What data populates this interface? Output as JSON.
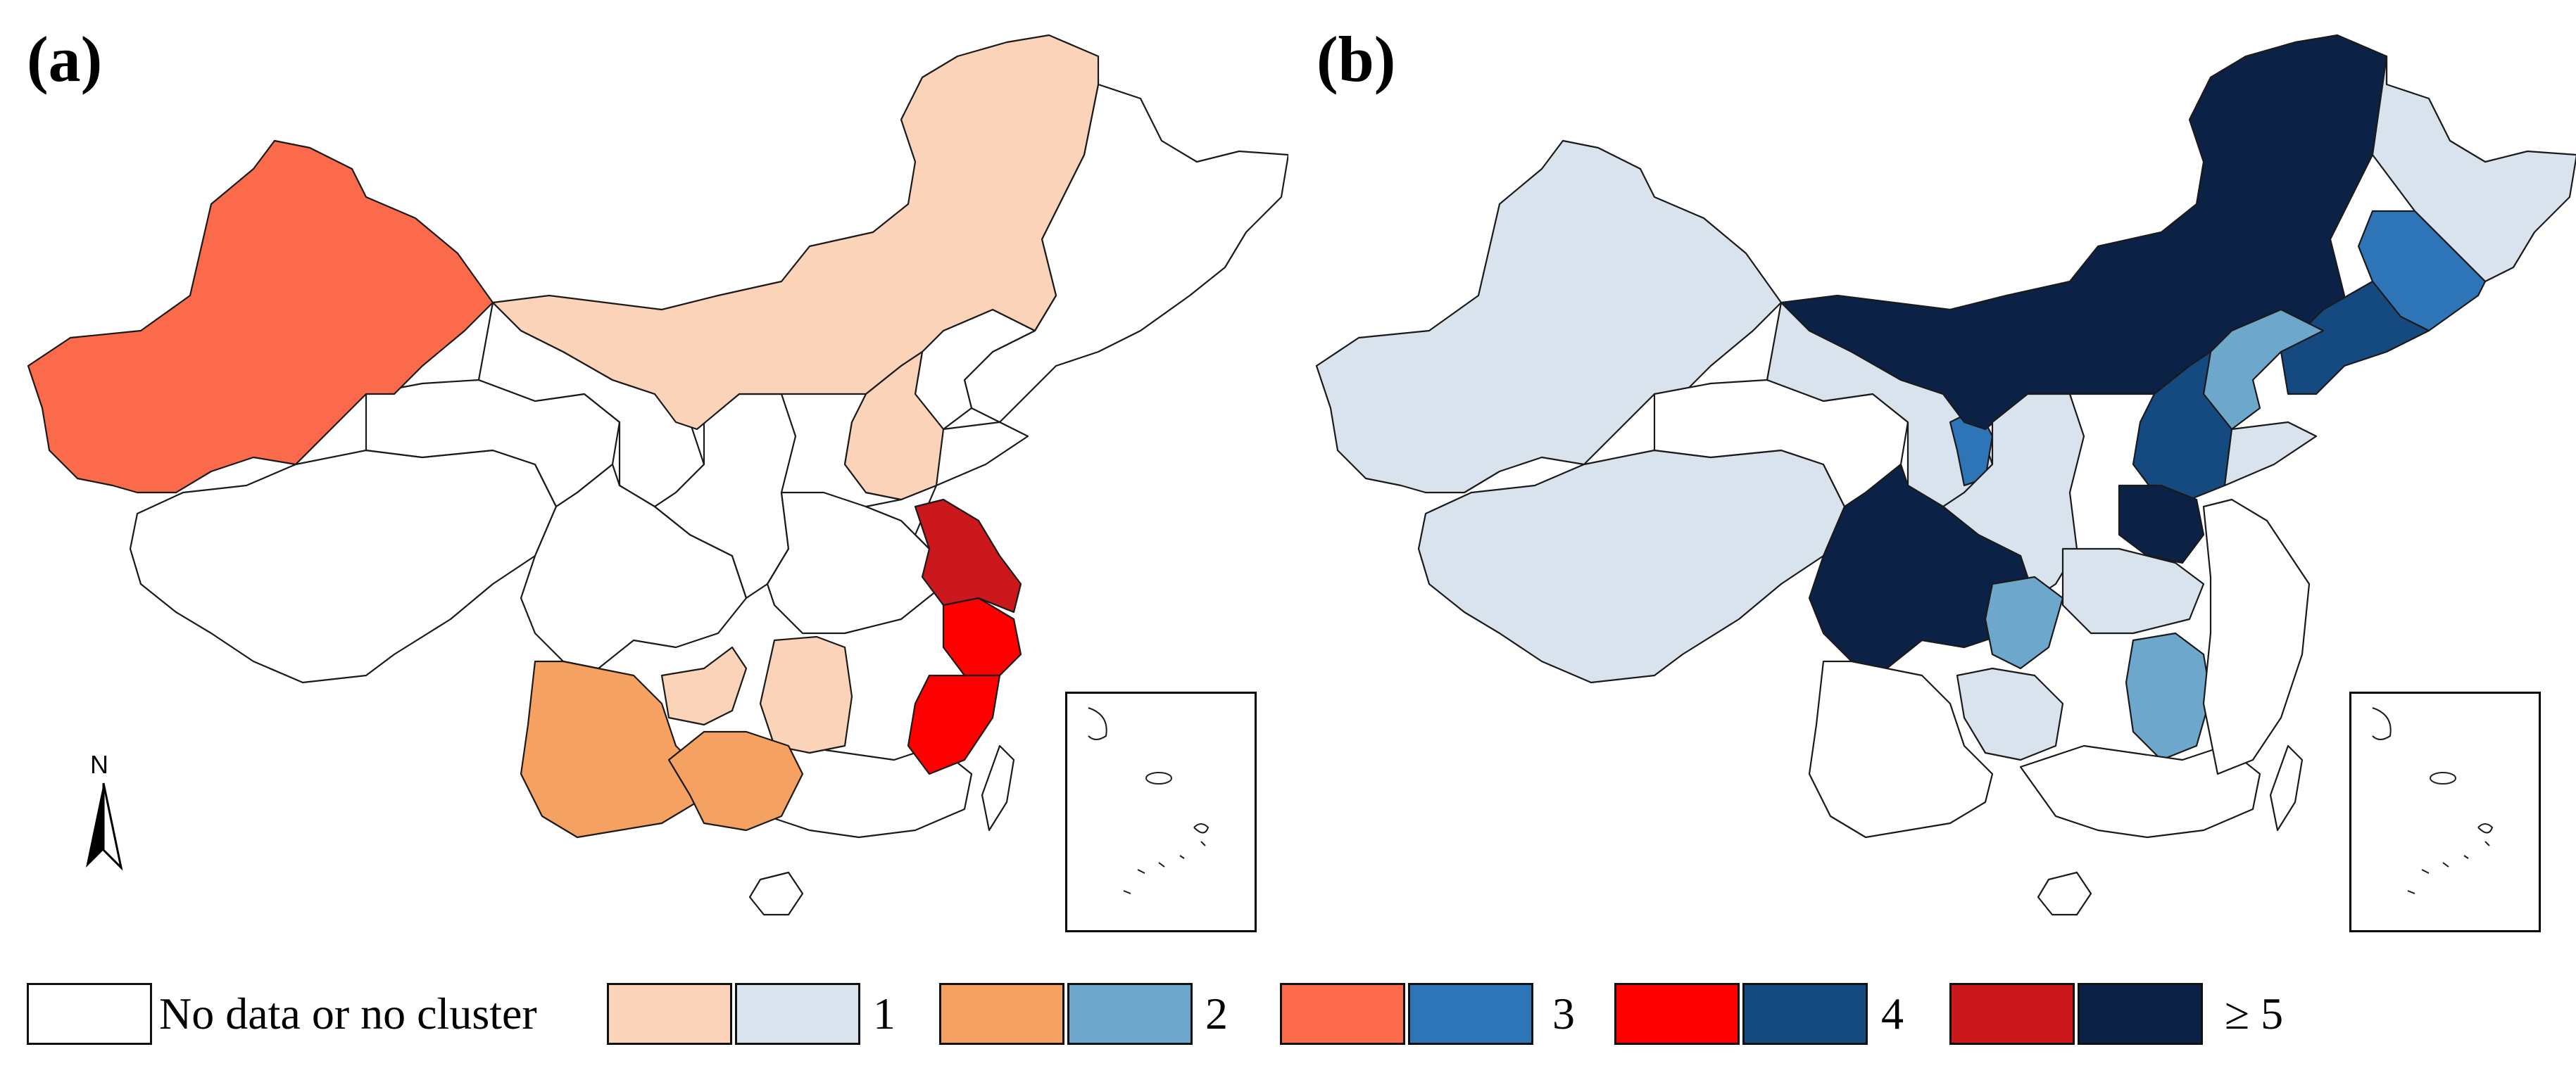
{
  "panels": {
    "a": {
      "label": "(a)"
    },
    "b": {
      "label": "(b)"
    }
  },
  "north_arrow": {
    "letter": "N",
    "icon": "north-arrow-icon"
  },
  "legend": {
    "no_data_label": "No data or no cluster",
    "classes": [
      {
        "label": "1",
        "color_a": "#fad3b9",
        "color_b": "#d8e3ee"
      },
      {
        "label": "2",
        "color_a": "#f5a161",
        "color_b": "#6da8cc"
      },
      {
        "label": "3",
        "color_a": "#fb6a4a",
        "color_b": "#2d75b6"
      },
      {
        "label": "4",
        "color_a": "#fe0000",
        "color_b": "#154a80"
      },
      {
        "label": "≥ 5",
        "color_a": "#cb181d",
        "color_b": "#0c2146"
      }
    ],
    "no_data_color": "#ffffff"
  }
}
